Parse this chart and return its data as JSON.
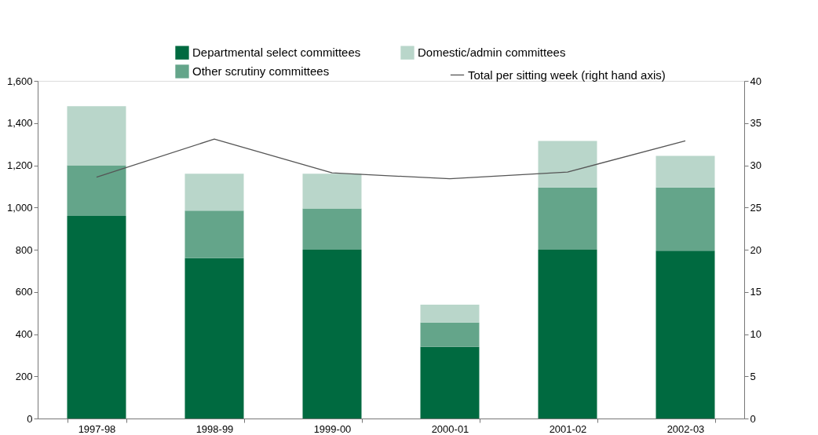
{
  "chart_data": {
    "type": "bar",
    "stacked": true,
    "legend": "top",
    "categories": [
      "1997-98",
      "1998-99",
      "1999-00",
      "2000-01",
      "2001-02",
      "2002-03"
    ],
    "series": [
      {
        "name": "Departmental select committees",
        "color": "#006a40",
        "values": [
          960,
          760,
          800,
          340,
          800,
          795
        ]
      },
      {
        "name": "Other scrutiny committees",
        "color": "#64a58a",
        "values": [
          240,
          225,
          195,
          115,
          295,
          300
        ]
      },
      {
        "name": "Domestic/admin committees",
        "color": "#b9d6ca",
        "values": [
          280,
          175,
          165,
          85,
          220,
          150
        ]
      },
      {
        "name": "Total per sitting week (right hand axis)",
        "color": "#555555",
        "type": "line",
        "axis": "y2",
        "values": [
          28.6,
          33.1,
          29.1,
          28.4,
          29.2,
          32.9
        ]
      }
    ],
    "ylim": [
      0,
      1600
    ],
    "yticks": [
      0,
      200,
      400,
      600,
      800,
      {
        "value": 1000,
        "label": "1,000"
      },
      {
        "value": 1200,
        "label": "1,200"
      },
      {
        "value": 1400,
        "label": "1,400"
      },
      {
        "value": 1600,
        "label": "1,600"
      }
    ],
    "y2lim": [
      0,
      40
    ],
    "y2ticks": [
      0,
      5,
      10,
      15,
      20,
      25,
      30,
      35,
      40
    ]
  }
}
